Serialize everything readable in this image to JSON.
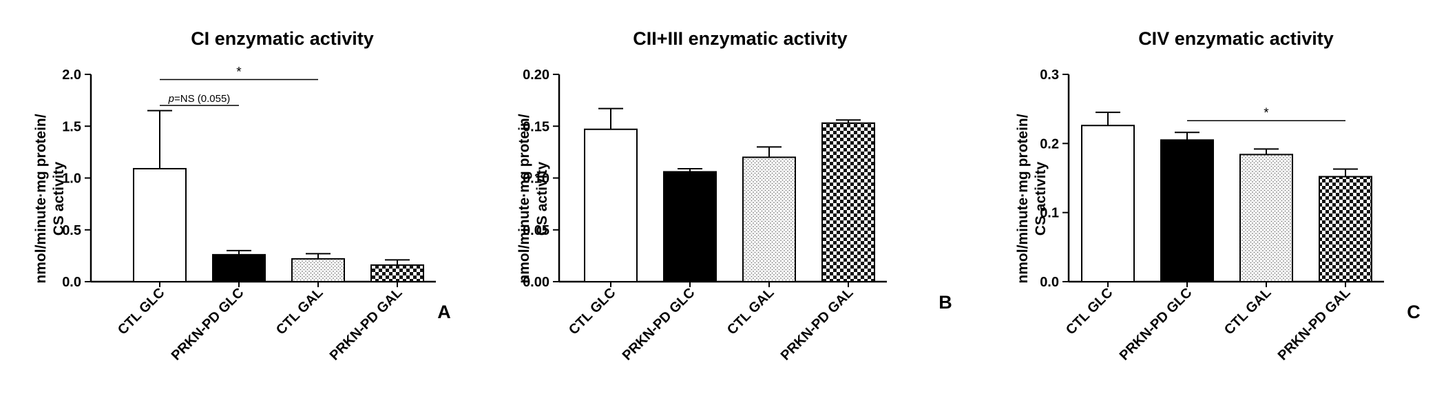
{
  "chart_data": [
    {
      "type": "bar",
      "title": "CI enzymatic activity",
      "panel_label": "A",
      "ylabel": [
        "nmol/minute·mg protein/",
        "CS activity"
      ],
      "categories": [
        "CTL GLC",
        "PRKN-PD GLC",
        "CTL GAL",
        "PRKN-PD GAL"
      ],
      "values": [
        1.09,
        0.26,
        0.22,
        0.16
      ],
      "errors": [
        0.56,
        0.04,
        0.05,
        0.05
      ],
      "patterns": [
        "white",
        "black",
        "dots",
        "checker"
      ],
      "ylim": [
        0,
        2.0
      ],
      "yticks": [
        "0.0",
        "0.5",
        "1.0",
        "1.5",
        "2.0"
      ],
      "ytick_values": [
        0,
        0.5,
        1.0,
        1.5,
        2.0
      ],
      "annotations": [
        {
          "from": 0,
          "to": 2,
          "level": 1.95,
          "label": "*"
        },
        {
          "from": 0,
          "to": 1,
          "level": 1.7,
          "label_p": "p",
          "label": "=NS (0.055)"
        }
      ]
    },
    {
      "type": "bar",
      "title": "CII+III enzymatic activity",
      "panel_label": "B",
      "ylabel": [
        "nmol/minute·mg protein/",
        "CS activity"
      ],
      "categories": [
        "CTL GLC",
        "PRKN-PD GLC",
        "CTL GAL",
        "PRKN-PD GAL"
      ],
      "values": [
        0.147,
        0.106,
        0.12,
        0.153
      ],
      "errors": [
        0.02,
        0.003,
        0.01,
        0.003
      ],
      "patterns": [
        "white",
        "black",
        "dots",
        "checker"
      ],
      "ylim": [
        0,
        0.2
      ],
      "yticks": [
        "0.00",
        "0.05",
        "0.10",
        "0.15",
        "0.20"
      ],
      "ytick_values": [
        0,
        0.05,
        0.1,
        0.15,
        0.2
      ],
      "annotations": []
    },
    {
      "type": "bar",
      "title": "CIV enzymatic activity",
      "panel_label": "C",
      "ylabel": [
        "nmol/minute·mg protein/",
        "CS activity"
      ],
      "categories": [
        "CTL GLC",
        "PRKN-PD GLC",
        "CTL GAL",
        "PRKN-PD GAL"
      ],
      "values": [
        0.226,
        0.205,
        0.184,
        0.152
      ],
      "errors": [
        0.019,
        0.011,
        0.008,
        0.011
      ],
      "patterns": [
        "white",
        "black",
        "dots",
        "checker"
      ],
      "ylim": [
        0,
        0.3
      ],
      "yticks": [
        "0.0",
        "0.1",
        "0.2",
        "0.3"
      ],
      "ytick_values": [
        0,
        0.1,
        0.2,
        0.3
      ],
      "annotations": [
        {
          "from": 1,
          "to": 3,
          "level": 0.233,
          "label": "*"
        }
      ]
    }
  ]
}
